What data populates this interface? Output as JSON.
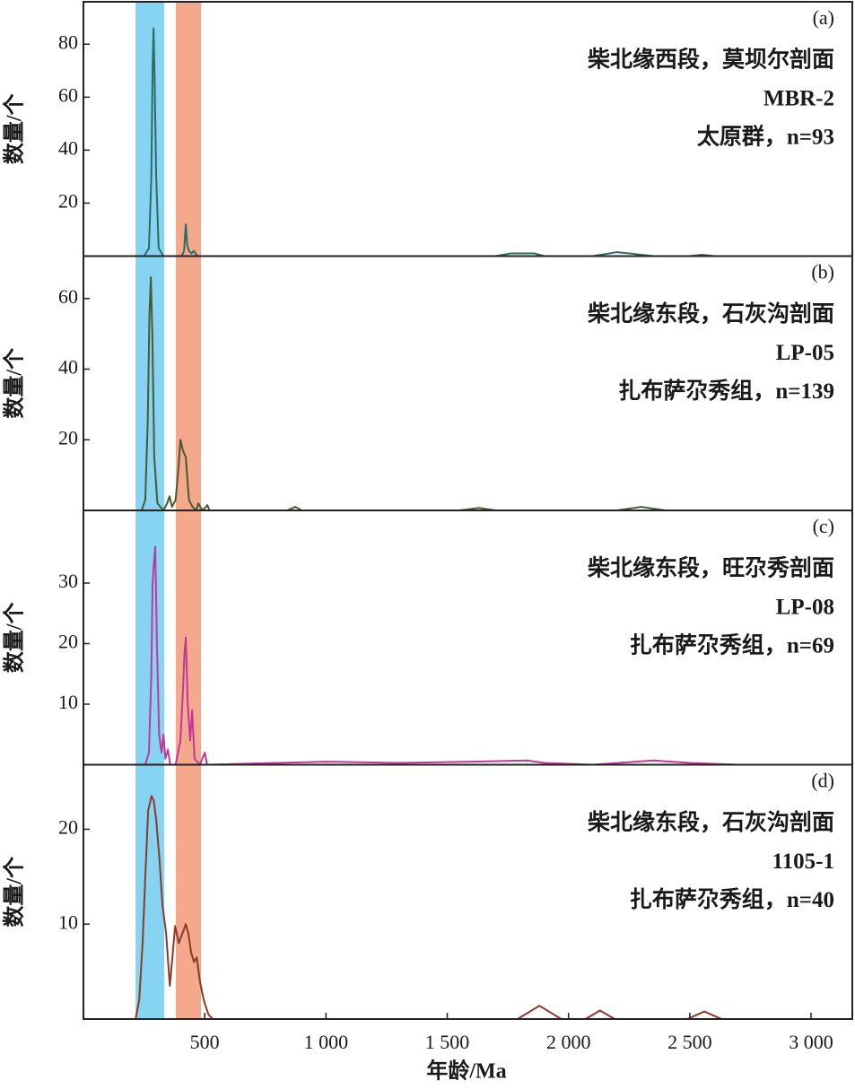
{
  "bands": [
    {
      "x0": 215,
      "x1": 333,
      "color": "#87d3f2"
    },
    {
      "x0": 381,
      "x1": 485,
      "color": "#f5a98c"
    }
  ],
  "x_label": "年龄/Ma",
  "chart_data": [
    {
      "type": "line",
      "y_label": "数量/个",
      "annotation": [
        "(a)",
        "柴北缘西段，莫坝尔剖面",
        "MBR-2",
        "太原群，n=93"
      ],
      "color": "#2e6b66",
      "xlim": [
        0,
        3170
      ],
      "ylim": [
        0,
        96
      ],
      "yticks": [
        20,
        40,
        60,
        80
      ],
      "x": [
        250,
        270,
        280,
        285,
        289,
        293,
        300,
        310,
        330,
        380,
        405,
        415,
        422,
        428,
        435,
        445,
        455,
        470,
        500,
        1700,
        1760,
        1800,
        1860,
        1900,
        2100,
        2200,
        2250,
        2350,
        2500,
        2550,
        2600,
        3000
      ],
      "values": [
        0,
        3,
        30,
        70,
        86,
        70,
        30,
        3,
        0,
        0,
        0,
        2,
        12,
        4,
        2,
        1,
        2,
        0,
        0,
        0,
        1,
        1,
        1,
        0,
        0,
        1.5,
        1,
        0,
        0,
        0.5,
        0,
        0
      ]
    },
    {
      "type": "line",
      "y_label": "数量/个",
      "annotation": [
        "(b)",
        "柴北缘东段，石灰沟剖面",
        "LP-05",
        "扎布萨尕秀组，n=139"
      ],
      "color": "#4a5a30",
      "xlim": [
        0,
        3170
      ],
      "ylim": [
        0,
        72
      ],
      "yticks": [
        20,
        40,
        60
      ],
      "x": [
        240,
        255,
        265,
        272,
        278,
        284,
        292,
        305,
        330,
        345,
        355,
        365,
        380,
        392,
        400,
        410,
        422,
        435,
        450,
        465,
        474,
        490,
        505,
        511,
        520,
        840,
        874,
        900,
        1550,
        1630,
        1700,
        2200,
        2300,
        2400,
        2600
      ],
      "values": [
        0,
        3,
        25,
        55,
        66,
        50,
        15,
        2,
        0,
        2,
        4,
        1,
        3,
        12,
        20,
        17,
        15,
        3,
        1,
        0,
        2,
        0,
        1,
        1.5,
        0,
        0,
        1,
        0,
        0,
        0.7,
        0,
        0,
        1,
        0,
        0
      ]
    },
    {
      "type": "line",
      "y_label": "数量/个",
      "annotation": [
        "(c)",
        "柴北缘东段，旺尕秀剖面",
        "LP-08",
        "扎布萨尕秀组，n=69"
      ],
      "color": "#c0399a",
      "xlim": [
        0,
        3170
      ],
      "ylim": [
        0,
        42
      ],
      "yticks": [
        10,
        20,
        30
      ],
      "x": [
        255,
        270,
        280,
        285,
        290,
        296,
        303,
        312,
        322,
        330,
        338,
        348,
        358,
        380,
        400,
        410,
        416,
        422,
        430,
        440,
        448,
        458,
        480,
        500,
        510,
        1000,
        1300,
        1600,
        1830,
        1900,
        2100,
        2350,
        2500,
        2700
      ],
      "values": [
        0,
        2,
        15,
        30,
        33,
        36,
        20,
        5,
        2,
        5,
        1,
        2.5,
        0,
        0,
        4,
        12,
        18,
        21,
        10,
        4,
        9,
        1,
        0,
        2,
        0,
        0.5,
        0.3,
        0.5,
        0.7,
        0.3,
        0,
        0.7,
        0.3,
        0
      ]
    },
    {
      "type": "line",
      "y_label": "数量/个",
      "annotation": [
        "(d)",
        "柴北缘东段，石灰沟剖面",
        "1105-1",
        "扎布萨尕秀组，n=40"
      ],
      "color": "#8a3a28",
      "xlim": [
        0,
        3170
      ],
      "ylim": [
        0,
        26.8
      ],
      "yticks": [
        10,
        20
      ],
      "xticks": [
        500,
        {
          "value": 1000,
          "label": "1 000"
        },
        {
          "value": 1500,
          "label": "1 500"
        },
        {
          "value": 2000,
          "label": "2 000"
        },
        {
          "value": 2500,
          "label": "2 500"
        },
        {
          "value": 3000,
          "label": "3 000"
        }
      ],
      "x": [
        215,
        230,
        244,
        255,
        267,
        281,
        290,
        300,
        313,
        326,
        341,
        356,
        365,
        378,
        393,
        408,
        422,
        433,
        444,
        456,
        467,
        480,
        496,
        515,
        533,
        1790,
        1880,
        1970,
        2070,
        2130,
        2190,
        2490,
        2560,
        2630
      ],
      "values": [
        0,
        2,
        8,
        15,
        22,
        23.5,
        23,
        21,
        17,
        12,
        9,
        3.5,
        6,
        9.8,
        8,
        9,
        10,
        9,
        7,
        6,
        6.5,
        4,
        2,
        0.5,
        0,
        0,
        1.4,
        0,
        0,
        0.9,
        0,
        0,
        0.8,
        0
      ]
    }
  ]
}
